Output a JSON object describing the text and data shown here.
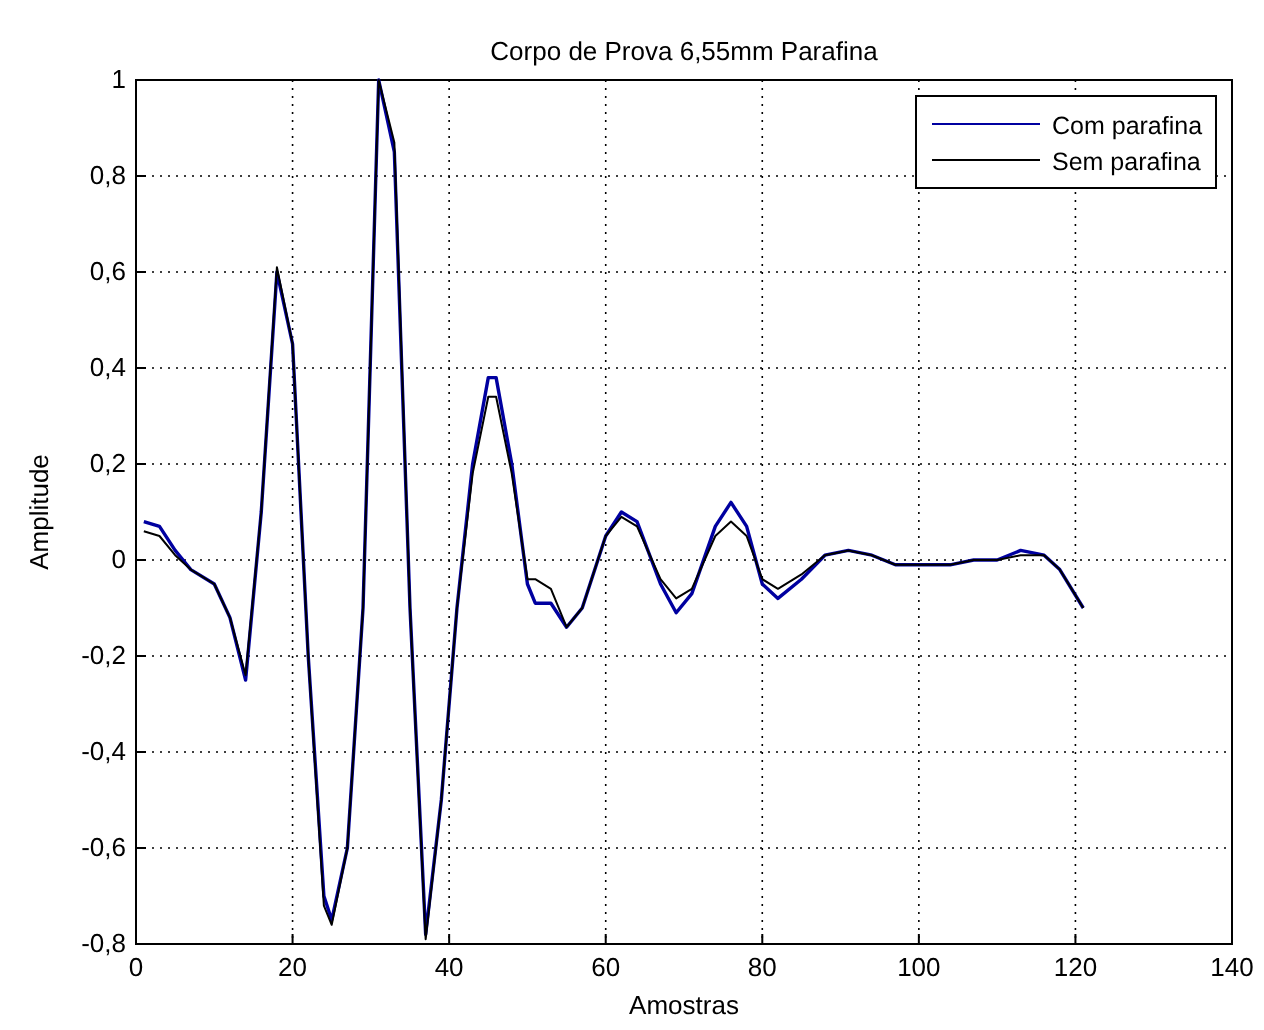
{
  "chart_data": {
    "type": "line",
    "title": "Corpo de Prova 6,55mm Parafina",
    "xlabel": "Amostras",
    "ylabel": "Amplitude",
    "xlim": [
      0,
      140
    ],
    "xticks": [
      0,
      20,
      40,
      60,
      80,
      100,
      120,
      140
    ],
    "ylim": [
      -0.8,
      1
    ],
    "yticks": [
      {
        "value": -0.8,
        "label": "-0,8"
      },
      {
        "value": -0.6,
        "label": "-0,6"
      },
      {
        "value": -0.4,
        "label": "-0,4"
      },
      {
        "value": -0.2,
        "label": "-0,2"
      },
      0,
      {
        "value": 0.2,
        "label": "0,2"
      },
      {
        "value": 0.4,
        "label": "0,4"
      },
      {
        "value": 0.6,
        "label": "0,6"
      },
      {
        "value": 0.8,
        "label": "0,8"
      },
      1
    ],
    "grid": true,
    "legend": "top right",
    "series": [
      {
        "name": "Com parafina",
        "color": "#0000a0",
        "x": [
          1,
          3,
          5,
          7,
          10,
          12,
          14,
          16,
          18,
          20,
          22,
          24,
          25,
          27,
          29,
          31,
          33,
          35,
          37,
          39,
          41,
          43,
          45,
          46,
          48,
          50,
          51,
          53,
          55,
          57,
          60,
          62,
          64,
          67,
          69,
          71,
          74,
          76,
          78,
          80,
          82,
          85,
          88,
          91,
          94,
          97,
          100,
          104,
          107,
          110,
          113,
          116,
          118,
          121
        ],
        "values": [
          0.08,
          0.07,
          0.02,
          -0.02,
          -0.05,
          -0.12,
          -0.25,
          0.1,
          0.6,
          0.45,
          -0.2,
          -0.7,
          -0.75,
          -0.6,
          -0.1,
          1.0,
          0.85,
          -0.1,
          -0.78,
          -0.5,
          -0.1,
          0.2,
          0.38,
          0.38,
          0.2,
          -0.05,
          -0.09,
          -0.09,
          -0.14,
          -0.1,
          0.05,
          0.1,
          0.08,
          -0.05,
          -0.11,
          -0.07,
          0.07,
          0.12,
          0.07,
          -0.05,
          -0.08,
          -0.04,
          0.01,
          0.02,
          0.01,
          -0.01,
          -0.01,
          -0.01,
          0.0,
          0.0,
          0.02,
          0.01,
          -0.02,
          -0.1
        ]
      },
      {
        "name": "Sem parafina",
        "color": "#000000",
        "x": [
          1,
          3,
          5,
          7,
          10,
          12,
          14,
          16,
          18,
          20,
          22,
          24,
          25,
          27,
          29,
          31,
          33,
          35,
          37,
          39,
          41,
          43,
          45,
          46,
          48,
          50,
          51,
          53,
          55,
          57,
          60,
          62,
          64,
          67,
          69,
          71,
          74,
          76,
          78,
          80,
          82,
          85,
          88,
          91,
          94,
          97,
          100,
          104,
          107,
          110,
          113,
          116,
          118,
          121
        ],
        "values": [
          0.06,
          0.05,
          0.01,
          -0.02,
          -0.05,
          -0.12,
          -0.24,
          0.1,
          0.61,
          0.45,
          -0.2,
          -0.72,
          -0.76,
          -0.6,
          -0.1,
          1.0,
          0.87,
          -0.1,
          -0.79,
          -0.5,
          -0.1,
          0.18,
          0.34,
          0.34,
          0.18,
          -0.04,
          -0.04,
          -0.06,
          -0.14,
          -0.1,
          0.05,
          0.09,
          0.07,
          -0.04,
          -0.08,
          -0.06,
          0.05,
          0.08,
          0.05,
          -0.04,
          -0.06,
          -0.03,
          0.01,
          0.02,
          0.01,
          -0.01,
          -0.01,
          -0.01,
          0.0,
          0.0,
          0.01,
          0.01,
          -0.02,
          -0.1
        ]
      }
    ]
  }
}
